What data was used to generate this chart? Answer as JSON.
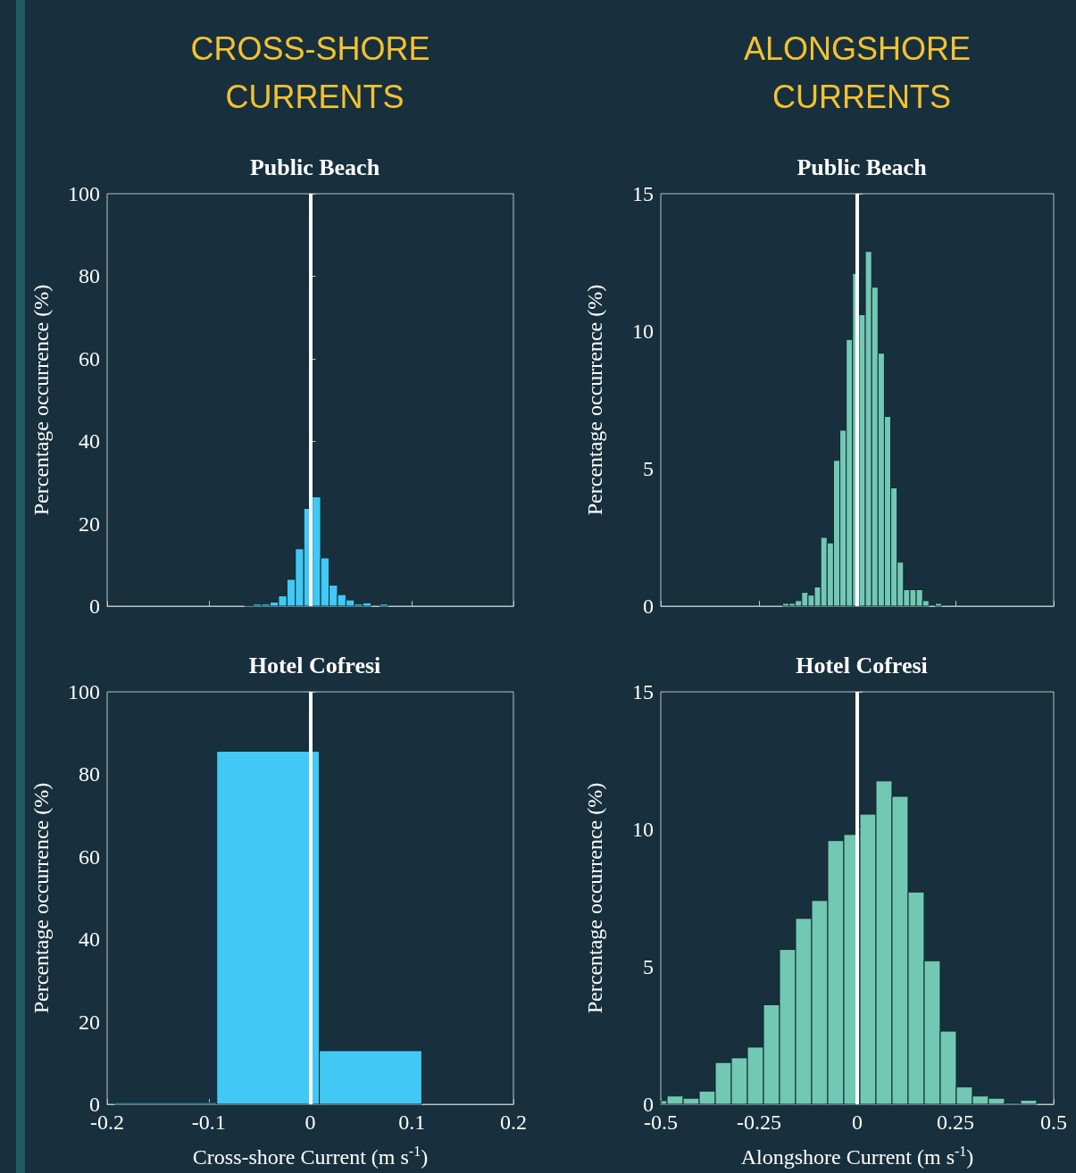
{
  "chart_data": [
    {
      "type": "histogram",
      "annotations": [
        "CROSS-SHORE CURRENTS"
      ],
      "title": "Public Beach",
      "ylabel": "Percentage occurrence (%)",
      "color": "#42c8f4",
      "bins": [
        -0.0728,
        -0.0645,
        -0.0562,
        -0.0479,
        -0.0396,
        -0.0313,
        -0.023,
        -0.0147,
        -0.0064,
        0.0019,
        0.0102,
        0.0185,
        0.0268,
        0.0351,
        0.0434,
        0.0517,
        0.06,
        0.0683,
        0.0766
      ],
      "values": [
        null,
        0.2,
        0.5,
        0.5,
        1.0,
        2.5,
        6.5,
        13.9,
        23.7,
        26.5,
        11.7,
        5.1,
        2.8,
        1.5,
        0.5,
        0.8,
        null,
        0.5
      ],
      "xlim": [
        -0.2,
        0.2
      ],
      "xticks": [
        -0.2,
        -0.1,
        0,
        0.1,
        0.2
      ],
      "ylim": [
        0,
        100
      ],
      "yticks": [
        0,
        20,
        40,
        60,
        80,
        100
      ],
      "tick_labels": "y",
      "ref_lines": [
        {
          "axis": "x",
          "value": 0,
          "label": null,
          "color": "#ffffff"
        }
      ]
    },
    {
      "type": "histogram",
      "annotations": [
        "ALONGSHORE CURRENTS"
      ],
      "title": "Public Beach",
      "ylabel": "Percentage occurrence (%)",
      "color": "#73c8b4",
      "bins": [
        -0.19,
        -0.1738,
        -0.1576,
        -0.1414,
        -0.1252,
        -0.109,
        -0.0928,
        -0.0766,
        -0.0604,
        -0.0442,
        -0.028,
        -0.0118,
        0.0044,
        0.0206,
        0.0368,
        0.053,
        0.0692,
        0.0854,
        0.1016,
        0.1178,
        0.134,
        0.1502,
        0.1664,
        0.1826,
        0.1988,
        0.215
      ],
      "values": [
        0.1,
        0.1,
        0.2,
        0.5,
        0.4,
        0.7,
        2.5,
        2.3,
        5.3,
        6.4,
        9.7,
        12.1,
        10.6,
        12.9,
        11.6,
        9.2,
        6.9,
        4.3,
        1.6,
        0.6,
        0.6,
        0.6,
        0.2,
        0,
        0.1
      ],
      "xlim": [
        -0.5,
        0.5
      ],
      "xticks": [
        -0.5,
        -0.25,
        0,
        0.25,
        0.5
      ],
      "ylim": [
        0,
        15
      ],
      "yticks": [
        0,
        5,
        10,
        15
      ],
      "tick_labels": "y",
      "ref_lines": [
        {
          "axis": "x",
          "value": 0,
          "label": null,
          "color": "#ffffff"
        }
      ]
    },
    {
      "type": "histogram",
      "title": "Hotel Cofresi",
      "xlabel": "Cross-shore Current (m s$^{-1}$)",
      "ylabel": "Percentage occurrence (%)",
      "color": "#42c8f4",
      "bins": [
        -0.1927,
        -0.0921,
        0.0089,
        0.1098
      ],
      "values": [
        0.4,
        85.6,
        13.0
      ],
      "xlim": [
        -0.2,
        0.2
      ],
      "xticks": [
        -0.2,
        -0.1,
        0,
        0.1,
        0.2
      ],
      "ylim": [
        0,
        100
      ],
      "yticks": [
        0,
        20,
        40,
        60,
        80,
        100
      ],
      "ref_lines": [
        {
          "axis": "x",
          "value": 0,
          "label": null,
          "color": "#ffffff"
        }
      ]
    },
    {
      "type": "histogram",
      "title": "Hotel Cofresi",
      "xlabel": "Alongshore Current (m s$^{-1}$)",
      "ylabel": "Percentage occurrence (%)",
      "color": "#73c8b4",
      "bins": [
        -0.5,
        -0.484,
        -0.4431,
        -0.4022,
        -0.3613,
        -0.3204,
        -0.2795,
        -0.2386,
        -0.1977,
        -0.1568,
        -0.1159,
        -0.075,
        -0.0341,
        0.0068,
        0.0477,
        0.0886,
        0.1295,
        0.1704,
        0.2113,
        0.2522,
        0.2931,
        0.334,
        0.3749,
        0.4158,
        0.4567
      ],
      "values": [
        0.13,
        0.3,
        0.22,
        0.48,
        1.52,
        1.69,
        2.08,
        3.62,
        5.63,
        6.76,
        7.41,
        9.59,
        9.81,
        10.55,
        11.76,
        11.2,
        7.72,
        5.22,
        2.66,
        0.63,
        0.3,
        0.22,
        0.05,
        0.15
      ],
      "xlim": [
        -0.5,
        0.5
      ],
      "xticks": [
        -0.5,
        -0.25,
        0,
        0.25,
        0.5
      ],
      "ylim": [
        0,
        15
      ],
      "yticks": [
        0,
        5,
        10,
        15
      ],
      "ref_lines": [
        {
          "axis": "x",
          "value": 0,
          "label": null,
          "color": "#ffffff"
        }
      ]
    }
  ]
}
